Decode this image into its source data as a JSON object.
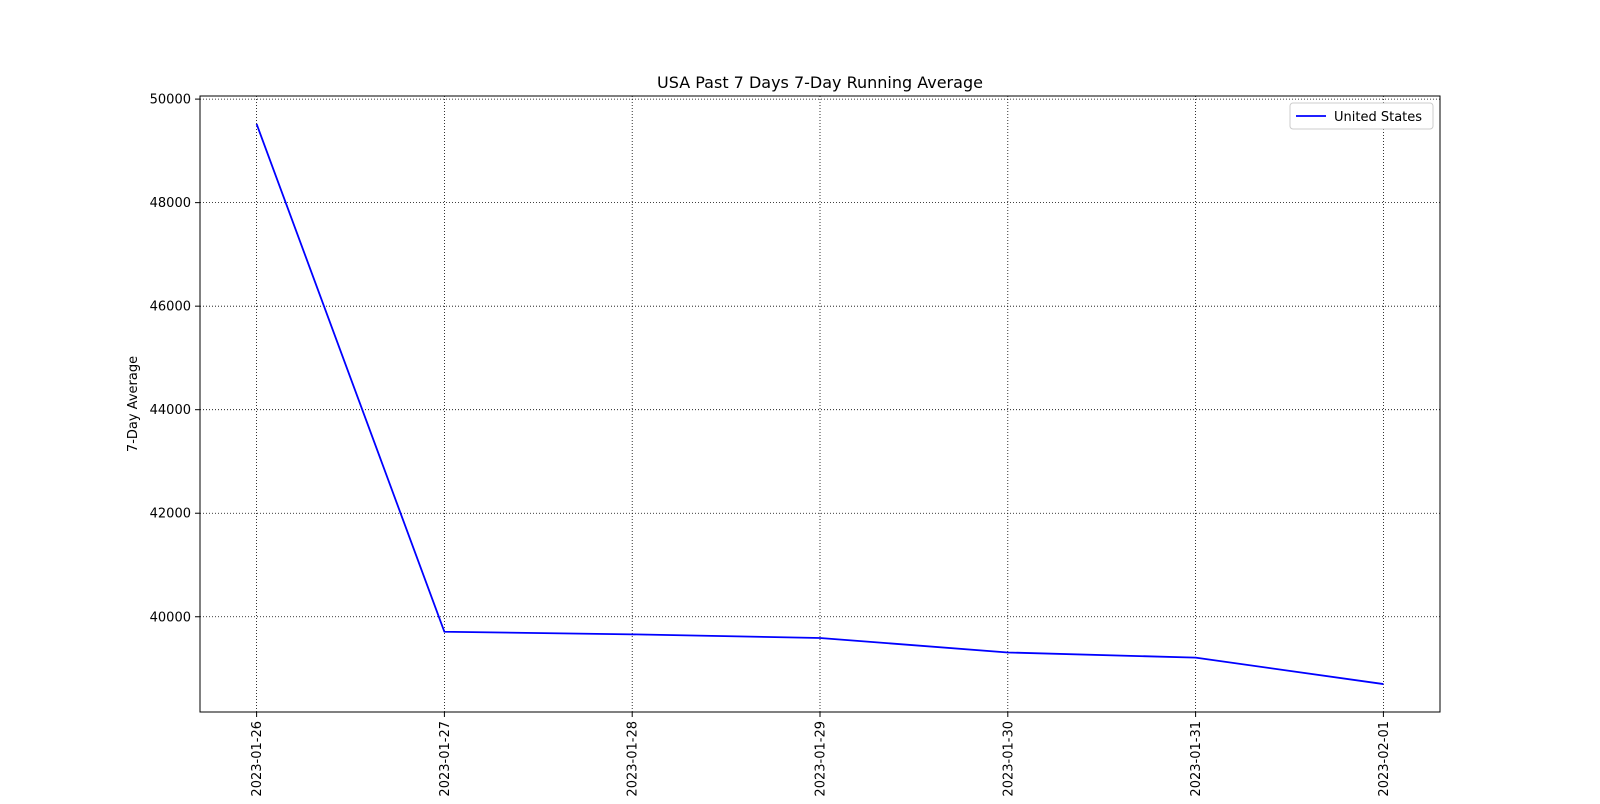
{
  "chart_data": {
    "type": "line",
    "title": "USA Past 7 Days 7-Day Running Average",
    "xlabel": "",
    "ylabel": "7-Day Average",
    "x": [
      "2023-01-26",
      "2023-01-27",
      "2023-01-28",
      "2023-01-29",
      "2023-01-30",
      "2023-01-31",
      "2023-02-01"
    ],
    "series": [
      {
        "name": "United States",
        "color": "#0000ff",
        "values": [
          49520,
          39710,
          39660,
          39590,
          39310,
          39210,
          38700
        ]
      }
    ],
    "ylim": [
      38160,
      50060
    ],
    "yticks": [
      40000,
      42000,
      44000,
      46000,
      48000,
      50000
    ],
    "ytick_labels": [
      "40000",
      "42000",
      "44000",
      "46000",
      "48000",
      "50000"
    ],
    "grid": true,
    "grid_style": "dotted",
    "legend_position": "upper-right"
  }
}
